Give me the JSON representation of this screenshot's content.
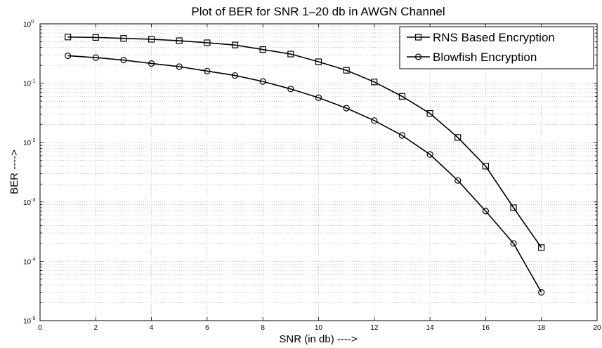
{
  "chart_data": {
    "type": "line",
    "title": "Plot of BER for SNR 1–20 db in AWGN Channel",
    "xlabel": "SNR (in db) ---->",
    "ylabel": "BER ---->",
    "xlim": [
      0,
      20
    ],
    "ylim": [
      1e-05,
      1
    ],
    "yscale": "log",
    "grid": true,
    "legend_position": "top-right",
    "x_ticks": [
      "0",
      "2",
      "4",
      "6",
      "8",
      "10",
      "12",
      "14",
      "16",
      "18",
      "20"
    ],
    "y_ticks": [
      {
        "base": "10",
        "exp": "-5",
        "value": 1e-05
      },
      {
        "base": "10",
        "exp": "-4",
        "value": 0.0001
      },
      {
        "base": "10",
        "exp": "-3",
        "value": 0.001
      },
      {
        "base": "10",
        "exp": "-2",
        "value": 0.01
      },
      {
        "base": "10",
        "exp": "-1",
        "value": 0.1
      },
      {
        "base": "10",
        "exp": "0",
        "value": 1
      }
    ],
    "x": [
      1,
      2,
      3,
      4,
      5,
      6,
      7,
      8,
      9,
      10,
      11,
      12,
      13,
      14,
      15,
      16,
      17,
      18
    ],
    "series": [
      {
        "name": "RNS Based Encryption",
        "marker": "square",
        "values": [
          0.6,
          0.59,
          0.57,
          0.55,
          0.52,
          0.48,
          0.44,
          0.37,
          0.31,
          0.23,
          0.165,
          0.105,
          0.06,
          0.031,
          0.0122,
          0.004,
          0.0008,
          0.00017
        ]
      },
      {
        "name": "Blowfish Encryption",
        "marker": "circle",
        "values": [
          0.29,
          0.27,
          0.245,
          0.215,
          0.19,
          0.16,
          0.135,
          0.107,
          0.08,
          0.057,
          0.038,
          0.0235,
          0.0132,
          0.0063,
          0.0023,
          0.0007,
          0.0002,
          3e-05
        ]
      }
    ]
  }
}
